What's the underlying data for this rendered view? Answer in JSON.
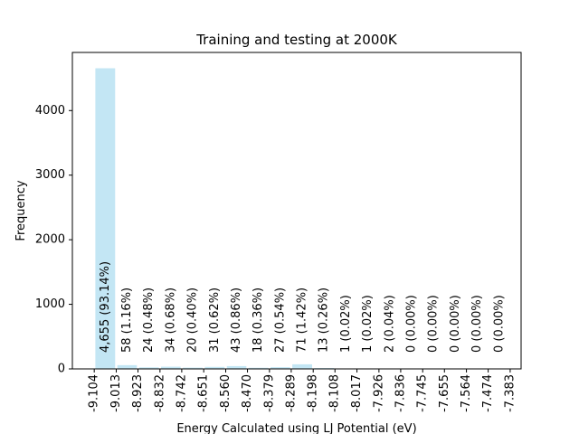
{
  "chart_data": {
    "type": "bar",
    "title": "Training and testing at 2000K",
    "xlabel": "Energy Calculated using LJ Potential (eV)",
    "ylabel": "Frequency",
    "ylim": [
      0,
      4900
    ],
    "yticks": [
      0,
      1000,
      2000,
      3000,
      4000
    ],
    "xlim": [
      -9.1945,
      -7.3378
    ],
    "x_tick_labels": [
      "-9.104",
      "-9.013",
      "-8.923",
      "-8.832",
      "-8.742",
      "-8.651",
      "-8.560",
      "-8.470",
      "-8.379",
      "-8.289",
      "-8.198",
      "-8.108",
      "-8.017",
      "-7.926",
      "-7.836",
      "-7.745",
      "-7.655",
      "-7.564",
      "-7.474",
      "-7.383"
    ],
    "bin_edges": [
      -9.104,
      -9.013,
      -8.923,
      -8.832,
      -8.742,
      -8.651,
      -8.56,
      -8.47,
      -8.379,
      -8.289,
      -8.198,
      -8.108,
      -8.017,
      -7.926,
      -7.836,
      -7.745,
      -7.655,
      -7.564,
      -7.474,
      -7.383
    ],
    "values": [
      4655,
      58,
      24,
      34,
      20,
      31,
      43,
      18,
      27,
      71,
      13,
      1,
      1,
      2,
      0,
      0,
      0,
      0,
      0
    ],
    "bar_labels": [
      "4,655  (93.14%)",
      "58  (1.16%)",
      "24  (0.48%)",
      "34  (0.68%)",
      "20  (0.40%)",
      "31  (0.62%)",
      "43  (0.86%)",
      "18  (0.36%)",
      "27  (0.54%)",
      "71  (1.42%)",
      "13  (0.26%)",
      "1  (0.02%)",
      "1  (0.02%)",
      "2  (0.04%)",
      "0  (0.00%)",
      "0  (0.00%)",
      "0  (0.00%)",
      "0  (0.00%)",
      "0  (0.00%)"
    ],
    "grid": false,
    "colors": {
      "bar": "#c3e6f4",
      "axis": "#000000"
    }
  }
}
